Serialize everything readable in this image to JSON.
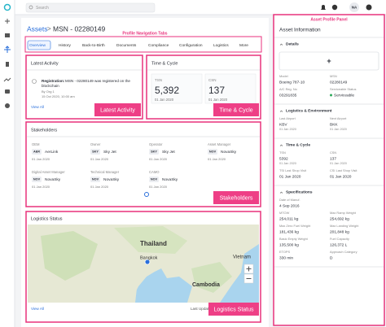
{
  "header": {
    "search_placeholder": "Search",
    "avatar": "NA"
  },
  "breadcrumb": {
    "parent": "Assets",
    "separator": ">",
    "current": "MSN - 02280149"
  },
  "annotations": {
    "tabs": "Profile Navigation Tabs",
    "panel": "Asset Profile Panel",
    "latest_activity": "Latest Activity",
    "time_cycle": "Time & Cycle",
    "stakeholders": "Stakeholders",
    "logistics": "Logistics Status"
  },
  "tabs": [
    "Overview",
    "History",
    "Back-to-Birth",
    "Documents",
    "Compliance",
    "Configuration",
    "Logistics",
    "More"
  ],
  "latest_activity": {
    "title": "Latest Activity",
    "entry_type": "Registration:",
    "entry_lines": [
      "MSN - 02280149 was registered on the",
      "blockchain"
    ],
    "by": "By Org 1",
    "time": "15 Oct 2020, 10:00 am",
    "link": "View All"
  },
  "time_cycle": {
    "title": "Time & Cycle",
    "metrics": [
      {
        "label": "TSN",
        "value": "5,392",
        "date": "01 Jan 2020"
      },
      {
        "label": "CSN",
        "value": "137",
        "date": "01 Jan 2020"
      }
    ]
  },
  "stakeholders": {
    "title": "Stakeholders",
    "items": [
      {
        "role": "OEM",
        "code": "AER",
        "name": "AerLink",
        "date": "01 Jan 2020"
      },
      {
        "role": "Owner",
        "code": "SKY",
        "name": "Sky Jet",
        "date": "01 Jan 2020"
      },
      {
        "role": "Operator",
        "code": "SKY",
        "name": "Sky Jet",
        "date": "01 Jan 2020"
      },
      {
        "role": "Asset Manager",
        "code": "NOV",
        "name": "NovaSky",
        "date": "01 Jan 2020"
      },
      {
        "role": "Digital Asset Manager",
        "code": "NOV",
        "name": "NovaSky",
        "date": "01 Jan 2020"
      },
      {
        "role": "Technical Manager",
        "code": "NOV",
        "name": "NovaSky",
        "date": "01 Jan 2020"
      },
      {
        "role": "CAMO",
        "code": "NOV",
        "name": "NovaSky",
        "date": "01 Jan 2020"
      }
    ]
  },
  "logistics": {
    "title": "Logistics Status",
    "map_labels": [
      "Thailand",
      "Bangkok",
      "Cambodia",
      "Vietnam"
    ],
    "link": "View All",
    "updated": "Last Updated"
  },
  "panel": {
    "title": "Asset Information",
    "sections": [
      {
        "title": "Details",
        "button": "+",
        "fields": [
          {
            "label": "Model",
            "value": "Boeing 787-10"
          },
          {
            "label": "MSN",
            "value": "02280149"
          },
          {
            "label": "A/C Reg. No",
            "value": "03291835"
          },
          {
            "label": "Serviceable Status",
            "value": "Serviceable",
            "indicator": "#2eaa5c"
          }
        ]
      },
      {
        "title": "Logistics & Environment",
        "fields": [
          {
            "label": "Last Airport",
            "value": "KBV",
            "sub": "01 Jan 2020"
          },
          {
            "label": "Next Airport",
            "value": "BKK",
            "sub": "01 Jan 2020"
          }
        ]
      },
      {
        "title": "Time & Cycle",
        "fields": [
          {
            "label": "TSN",
            "value": "5392",
            "sub": "01 Jan 2020"
          },
          {
            "label": "CSN",
            "value": "137",
            "sub": "01 Jan 2020"
          },
          {
            "label": "TSI Last Shop Visit",
            "value": "01 Jan 2020"
          },
          {
            "label": "CSI Last Shop Visit",
            "value": "01 Jan 2020"
          }
        ]
      },
      {
        "title": "Specifications",
        "fields": [
          {
            "label": "Date of Manuf.",
            "value": "4 Sep 2016"
          },
          {
            "label": "",
            "value": ""
          },
          {
            "label": "MTOW",
            "value": "254,011 kg"
          },
          {
            "label": "Max Ramp Weight",
            "value": "254,692 kg"
          },
          {
            "label": "Max Zero Fuel Weight",
            "value": "181,436 kg"
          },
          {
            "label": "Max Landing Weight",
            "value": "201,848 kg"
          },
          {
            "label": "Basic Empty Weight",
            "value": "135,500 kg"
          },
          {
            "label": "Fuel Capacity",
            "value": "126,372 L"
          },
          {
            "label": "ETOPS",
            "value": "330 min"
          },
          {
            "label": "Approach Category",
            "value": "D"
          }
        ]
      }
    ]
  }
}
